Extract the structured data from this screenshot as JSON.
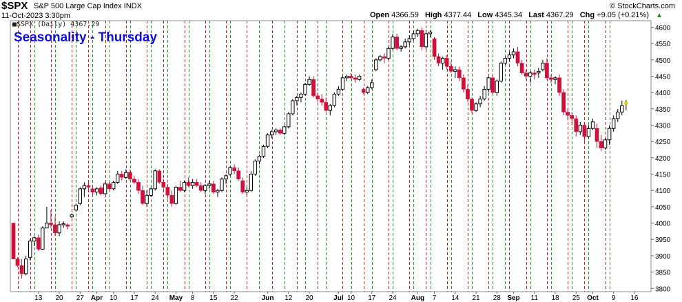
{
  "header": {
    "symbol": "$SPX",
    "description": "S&P 500 Large Cap Index INDX",
    "timestamp": "11-Oct-2023 3:30pm",
    "brand": "© StockCharts.com",
    "open_label": "Open",
    "open_value": "4366.59",
    "high_label": "High",
    "high_value": "4377.44",
    "low_label": "Low",
    "low_value": "4345.34",
    "last_label": "Last",
    "last_value": "4367.29",
    "chg_label": "Chg",
    "chg_value": "+9.05 (+0.21%)",
    "chg_icon": "up-triangle-icon"
  },
  "legend_text": "■$SPX (Daily) 4367.29",
  "chart_title": "Seasonality - Thursday",
  "colors": {
    "up_candle_fill": "#ffffff",
    "up_candle_stroke": "#000000",
    "down_candle": "#d0103a",
    "green_line": "#1a9a1a",
    "red_line": "#d01818",
    "last_marker": "#e8d800",
    "title": "#1010e0"
  },
  "chart_data": {
    "type": "candlestick",
    "title": "Seasonality - Thursday",
    "ylim": [
      3800,
      4620
    ],
    "y_ticks": [
      "3800",
      "3850",
      "3900",
      "3950",
      "4000",
      "4050",
      "4100",
      "4150",
      "4200",
      "4250",
      "4300",
      "4350",
      "4400",
      "4450",
      "4500",
      "4550",
      "4600"
    ],
    "x_tick_labels": [
      {
        "day": 6,
        "label": "13",
        "bold": false
      },
      {
        "day": 11,
        "label": "20",
        "bold": false
      },
      {
        "day": 16,
        "label": "27",
        "bold": false
      },
      {
        "day": 20,
        "label": "Apr",
        "bold": true
      },
      {
        "day": 24,
        "label": "10",
        "bold": false
      },
      {
        "day": 29,
        "label": "17",
        "bold": false
      },
      {
        "day": 34,
        "label": "24",
        "bold": false
      },
      {
        "day": 39,
        "label": "May",
        "bold": true
      },
      {
        "day": 43,
        "label": "8",
        "bold": false
      },
      {
        "day": 48,
        "label": "15",
        "bold": false
      },
      {
        "day": 53,
        "label": "22",
        "bold": false
      },
      {
        "day": 61,
        "label": "Jun",
        "bold": true
      },
      {
        "day": 66,
        "label": "12",
        "bold": false
      },
      {
        "day": 71,
        "label": "20",
        "bold": false
      },
      {
        "day": 78,
        "label": "Jul",
        "bold": true
      },
      {
        "day": 81,
        "label": "10",
        "bold": false
      },
      {
        "day": 86,
        "label": "17",
        "bold": false
      },
      {
        "day": 91,
        "label": "24",
        "bold": false
      },
      {
        "day": 97,
        "label": "Aug",
        "bold": true
      },
      {
        "day": 101,
        "label": "7",
        "bold": false
      },
      {
        "day": 106,
        "label": "14",
        "bold": false
      },
      {
        "day": 111,
        "label": "21",
        "bold": false
      },
      {
        "day": 116,
        "label": "28",
        "bold": false
      },
      {
        "day": 120,
        "label": "Sep",
        "bold": true
      },
      {
        "day": 125,
        "label": "11",
        "bold": false
      },
      {
        "day": 130,
        "label": "18",
        "bold": false
      },
      {
        "day": 135,
        "label": "25",
        "bold": false
      },
      {
        "day": 139,
        "label": "Oct",
        "bold": true
      },
      {
        "day": 144,
        "label": "9",
        "bold": false
      },
      {
        "day": 149,
        "label": "16",
        "bold": false
      }
    ],
    "green_lines_day": [
      5,
      10,
      15,
      19,
      23,
      28,
      33,
      37,
      42,
      47,
      52,
      59,
      65,
      70,
      75,
      81,
      86,
      91,
      96,
      100,
      105,
      110,
      115,
      118,
      124,
      129,
      134,
      138,
      143
    ],
    "red_lines_day": [
      1,
      4,
      9,
      14,
      18,
      22,
      27,
      32,
      36,
      41,
      46,
      51,
      56,
      62,
      68,
      73,
      79,
      84,
      90,
      95,
      99,
      104,
      109,
      114,
      119,
      123,
      128,
      133,
      137,
      142
    ],
    "candles": [
      [
        0,
        4000,
        4000,
        3890,
        3890
      ],
      [
        1,
        3890,
        3895,
        3865,
        3870
      ],
      [
        2,
        3870,
        3890,
        3830,
        3845
      ],
      [
        3,
        3845,
        3900,
        3840,
        3890
      ],
      [
        4,
        3895,
        3950,
        3885,
        3945
      ],
      [
        5,
        3945,
        3960,
        3930,
        3955
      ],
      [
        6,
        3955,
        3965,
        3915,
        3920
      ],
      [
        7,
        3920,
        3990,
        3918,
        3985
      ],
      [
        8,
        3985,
        4050,
        3985,
        4000
      ],
      [
        9,
        4000,
        4040,
        3985,
        3995
      ],
      [
        10,
        3995,
        4020,
        3960,
        3970
      ],
      [
        11,
        3970,
        4005,
        3960,
        3995
      ],
      [
        12,
        3995,
        4005,
        3985,
        3998
      ],
      [
        13,
        3995,
        4000,
        3980,
        3990
      ],
      [
        14,
        4020,
        4030,
        4015,
        4025
      ],
      [
        15,
        4040,
        4060,
        4035,
        4055
      ],
      [
        16,
        4060,
        4110,
        4055,
        4105
      ],
      [
        17,
        4105,
        4125,
        4080,
        4115
      ],
      [
        18,
        4115,
        4130,
        4100,
        4110
      ],
      [
        19,
        4105,
        4115,
        4085,
        4095
      ],
      [
        20,
        4095,
        4110,
        4085,
        4105
      ],
      [
        21,
        4108,
        4115,
        4085,
        4090
      ],
      [
        22,
        4090,
        4125,
        4088,
        4120
      ],
      [
        23,
        4120,
        4125,
        4100,
        4105
      ],
      [
        24,
        4105,
        4130,
        4100,
        4125
      ],
      [
        25,
        4125,
        4160,
        4120,
        4150
      ],
      [
        26,
        4150,
        4160,
        4130,
        4140
      ],
      [
        27,
        4140,
        4165,
        4135,
        4155
      ],
      [
        28,
        4155,
        4165,
        4130,
        4135
      ],
      [
        29,
        4135,
        4145,
        4120,
        4125
      ],
      [
        30,
        4125,
        4135,
        4090,
        4100
      ],
      [
        31,
        4100,
        4115,
        4055,
        4060
      ],
      [
        32,
        4060,
        4100,
        4050,
        4085
      ],
      [
        33,
        4085,
        4110,
        4080,
        4105
      ],
      [
        34,
        4105,
        4165,
        4100,
        4160
      ],
      [
        35,
        4160,
        4165,
        4120,
        4125
      ],
      [
        36,
        4125,
        4135,
        4100,
        4110
      ],
      [
        37,
        4110,
        4120,
        4075,
        4085
      ],
      [
        38,
        4085,
        4100,
        4050,
        4060
      ],
      [
        39,
        4060,
        4115,
        4055,
        4110
      ],
      [
        40,
        4110,
        4130,
        4095,
        4100
      ],
      [
        41,
        4100,
        4130,
        4095,
        4125
      ],
      [
        42,
        4125,
        4140,
        4110,
        4115
      ],
      [
        43,
        4115,
        4135,
        4105,
        4125
      ],
      [
        44,
        4125,
        4135,
        4110,
        4115
      ],
      [
        45,
        4115,
        4125,
        4095,
        4100
      ],
      [
        46,
        4100,
        4120,
        4090,
        4115
      ],
      [
        47,
        4115,
        4130,
        4105,
        4120
      ],
      [
        48,
        4120,
        4130,
        4090,
        4095
      ],
      [
        49,
        4095,
        4105,
        4080,
        4100
      ],
      [
        50,
        4100,
        4140,
        4095,
        4135
      ],
      [
        51,
        4135,
        4150,
        4120,
        4145
      ],
      [
        52,
        4150,
        4175,
        4145,
        4170
      ],
      [
        53,
        4170,
        4180,
        4150,
        4160
      ],
      [
        54,
        4160,
        4170,
        4130,
        4135
      ],
      [
        55,
        4130,
        4140,
        4090,
        4095
      ],
      [
        56,
        4095,
        4110,
        4085,
        4100
      ],
      [
        57,
        4100,
        4160,
        4095,
        4150
      ],
      [
        58,
        4150,
        4195,
        4145,
        4190
      ],
      [
        59,
        4190,
        4210,
        4180,
        4205
      ],
      [
        60,
        4205,
        4240,
        4200,
        4235
      ],
      [
        61,
        4235,
        4275,
        4230,
        4270
      ],
      [
        62,
        4270,
        4285,
        4260,
        4280
      ],
      [
        63,
        4280,
        4290,
        4270,
        4285
      ],
      [
        64,
        4285,
        4290,
        4270,
        4275
      ],
      [
        65,
        4275,
        4300,
        4270,
        4295
      ],
      [
        66,
        4295,
        4340,
        4290,
        4335
      ],
      [
        67,
        4335,
        4380,
        4330,
        4375
      ],
      [
        68,
        4375,
        4390,
        4360,
        4385
      ],
      [
        69,
        4385,
        4400,
        4370,
        4395
      ],
      [
        70,
        4395,
        4430,
        4390,
        4425
      ],
      [
        71,
        4425,
        4450,
        4420,
        4440
      ],
      [
        72,
        4440,
        4450,
        4385,
        4390
      ],
      [
        73,
        4390,
        4400,
        4370,
        4380
      ],
      [
        74,
        4380,
        4395,
        4360,
        4370
      ],
      [
        75,
        4370,
        4385,
        4340,
        4345
      ],
      [
        76,
        4345,
        4365,
        4330,
        4360
      ],
      [
        77,
        4360,
        4400,
        4355,
        4395
      ],
      [
        78,
        4395,
        4420,
        4390,
        4410
      ],
      [
        79,
        4410,
        4450,
        4405,
        4445
      ],
      [
        80,
        4445,
        4455,
        4435,
        4450
      ],
      [
        81,
        4450,
        4460,
        4440,
        4445
      ],
      [
        82,
        4445,
        4455,
        4430,
        4440
      ],
      [
        83,
        4440,
        4455,
        4435,
        4450
      ],
      [
        84,
        4410,
        4415,
        4395,
        4400
      ],
      [
        85,
        4400,
        4420,
        4395,
        4415
      ],
      [
        86,
        4415,
        4440,
        4410,
        4430
      ],
      [
        87,
        4470,
        4505,
        4465,
        4500
      ],
      [
        88,
        4500,
        4515,
        4495,
        4510
      ],
      [
        89,
        4510,
        4520,
        4490,
        4505
      ],
      [
        90,
        4505,
        4540,
        4500,
        4535
      ],
      [
        91,
        4535,
        4580,
        4530,
        4570
      ],
      [
        92,
        4570,
        4580,
        4530,
        4535
      ],
      [
        93,
        4535,
        4545,
        4525,
        4540
      ],
      [
        94,
        4540,
        4565,
        4535,
        4555
      ],
      [
        95,
        4555,
        4575,
        4545,
        4565
      ],
      [
        96,
        4565,
        4590,
        4560,
        4580
      ],
      [
        97,
        4580,
        4595,
        4570,
        4590
      ],
      [
        98,
        4590,
        4600,
        4530,
        4540
      ],
      [
        99,
        4540,
        4590,
        4530,
        4580
      ],
      [
        100,
        4580,
        4590,
        4570,
        4585
      ],
      [
        101,
        4565,
        4570,
        4500,
        4510
      ],
      [
        102,
        4510,
        4520,
        4480,
        4490
      ],
      [
        103,
        4490,
        4510,
        4470,
        4505
      ],
      [
        104,
        4505,
        4515,
        4470,
        4480
      ],
      [
        105,
        4480,
        4495,
        4460,
        4465
      ],
      [
        106,
        4465,
        4480,
        4445,
        4470
      ],
      [
        107,
        4470,
        4480,
        4435,
        4445
      ],
      [
        108,
        4445,
        4455,
        4400,
        4410
      ],
      [
        109,
        4410,
        4425,
        4370,
        4380
      ],
      [
        110,
        4380,
        4385,
        4335,
        4345
      ],
      [
        111,
        4345,
        4370,
        4340,
        4365
      ],
      [
        112,
        4365,
        4390,
        4355,
        4380
      ],
      [
        113,
        4380,
        4420,
        4375,
        4410
      ],
      [
        114,
        4410,
        4450,
        4400,
        4445
      ],
      [
        115,
        4445,
        4455,
        4395,
        4400
      ],
      [
        116,
        4400,
        4440,
        4390,
        4435
      ],
      [
        117,
        4435,
        4495,
        4430,
        4490
      ],
      [
        118,
        4490,
        4510,
        4485,
        4505
      ],
      [
        119,
        4505,
        4525,
        4495,
        4515
      ],
      [
        120,
        4515,
        4535,
        4505,
        4525
      ],
      [
        121,
        4525,
        4540,
        4480,
        4490
      ],
      [
        122,
        4490,
        4500,
        4455,
        4460
      ],
      [
        123,
        4460,
        4470,
        4440,
        4450
      ],
      [
        124,
        4450,
        4465,
        4430,
        4460
      ],
      [
        125,
        4460,
        4470,
        4440,
        4455
      ],
      [
        126,
        4460,
        4475,
        4445,
        4465
      ],
      [
        127,
        4470,
        4500,
        4465,
        4490
      ],
      [
        128,
        4490,
        4505,
        4440,
        4445
      ],
      [
        129,
        4445,
        4455,
        4430,
        4440
      ],
      [
        130,
        4440,
        4450,
        4425,
        4445
      ],
      [
        131,
        4445,
        4455,
        4390,
        4400
      ],
      [
        132,
        4400,
        4410,
        4330,
        4340
      ],
      [
        133,
        4340,
        4350,
        4315,
        4330
      ],
      [
        134,
        4330,
        4340,
        4300,
        4320
      ],
      [
        135,
        4320,
        4330,
        4265,
        4280
      ],
      [
        136,
        4280,
        4310,
        4270,
        4300
      ],
      [
        137,
        4300,
        4310,
        4250,
        4265
      ],
      [
        138,
        4265,
        4300,
        4260,
        4290
      ],
      [
        139,
        4290,
        4320,
        4285,
        4310
      ],
      [
        140,
        4290,
        4305,
        4230,
        4250
      ],
      [
        141,
        4250,
        4270,
        4220,
        4230
      ],
      [
        142,
        4230,
        4260,
        4225,
        4255
      ],
      [
        143,
        4255,
        4300,
        4240,
        4290
      ],
      [
        144,
        4290,
        4330,
        4280,
        4320
      ],
      [
        145,
        4320,
        4350,
        4310,
        4340
      ],
      [
        146,
        4340,
        4375,
        4330,
        4360
      ],
      [
        147,
        4366.59,
        4377.44,
        4345.34,
        4367.29
      ]
    ]
  }
}
